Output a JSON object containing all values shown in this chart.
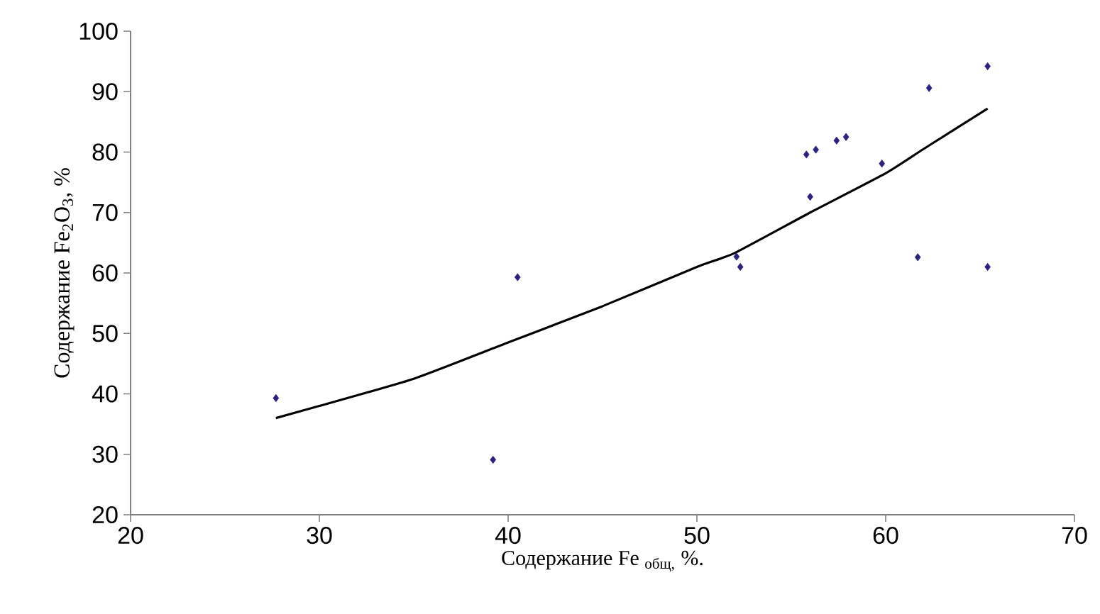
{
  "chart_data": {
    "type": "scatter",
    "xlabel": "Содержание Fe $_{общ,}$ %.",
    "ylabel": "Содержание Fe$_{2}$O$_{3}$, %",
    "xlim": [
      20,
      70
    ],
    "xticks": [
      20,
      30,
      40,
      50,
      60,
      70
    ],
    "ylim": [
      20,
      100
    ],
    "yticks": [
      20,
      30,
      40,
      50,
      60,
      70,
      80,
      90,
      100
    ],
    "marker": "diamond",
    "series": [
      {
        "color": "#2b2280",
        "x": [
          27.7,
          39.2,
          40.5,
          52.1,
          52.3,
          55.8,
          56.3,
          56.0,
          57.4,
          57.9,
          59.8,
          62.3,
          61.7,
          65.4,
          65.4
        ],
        "values": [
          39.3,
          29.1,
          59.3,
          62.7,
          61.0,
          79.6,
          80.4,
          72.6,
          81.9,
          82.5,
          78.1,
          90.6,
          62.6,
          94.2,
          61.0
        ]
      },
      {
        "type": "line",
        "color": "#000000",
        "marker": "none",
        "x": [
          27.7,
          30,
          35,
          40,
          45,
          50,
          52,
          56,
          60,
          62,
          65.4
        ],
        "values": [
          36,
          38,
          42.5,
          48.5,
          54.5,
          61,
          63.3,
          70,
          76.5,
          80.5,
          87.2
        ]
      }
    ]
  }
}
